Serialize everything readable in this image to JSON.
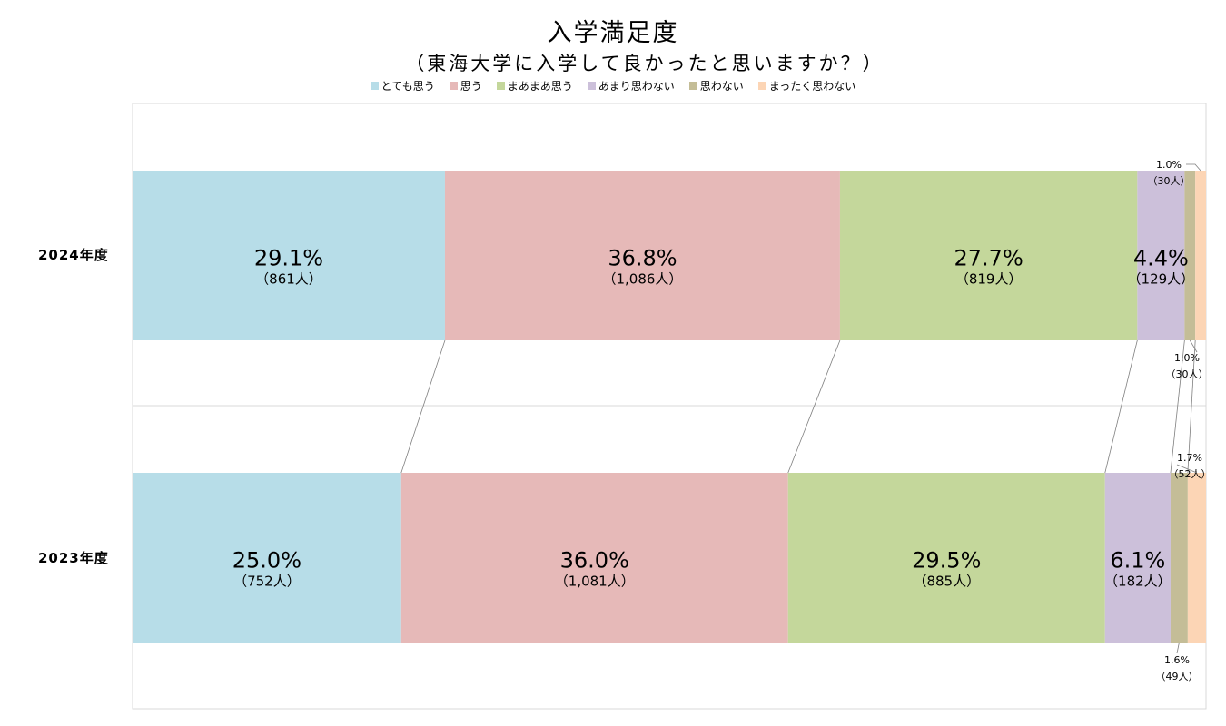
{
  "chart_data": {
    "type": "bar",
    "orientation": "horizontal",
    "stacked": "100%",
    "title": "入学満足度",
    "subtitle": "（東海大学に入学して良かったと思いますか？）",
    "categories": [
      "2024年度",
      "2023年度"
    ],
    "legend_position": "top",
    "series": [
      {
        "name": "とても思う",
        "color": "#b7dde8",
        "values": [
          29.1,
          25.0
        ],
        "labels": [
          "29.1%",
          "25.0%"
        ],
        "counts": [
          "（861人）",
          "（752人）"
        ]
      },
      {
        "name": "思う",
        "color": "#e6b9b8",
        "values": [
          36.8,
          36.0
        ],
        "labels": [
          "36.8%",
          "36.0%"
        ],
        "counts": [
          "（1,086人）",
          "（1,081人）"
        ]
      },
      {
        "name": "まあまあ思う",
        "color": "#c4d79b",
        "values": [
          27.7,
          29.5
        ],
        "labels": [
          "27.7%",
          "29.5%"
        ],
        "counts": [
          "（819人）",
          "（885人）"
        ]
      },
      {
        "name": "あまり思わない",
        "color": "#ccc0da",
        "values": [
          4.4,
          6.1
        ],
        "labels": [
          "4.4%",
          "6.1%"
        ],
        "counts": [
          "（129人）",
          "（182人）"
        ]
      },
      {
        "name": "思わない",
        "color": "#c4bd97",
        "values": [
          1.0,
          1.6
        ],
        "labels": [
          "1.0%",
          "1.6%"
        ],
        "counts": [
          "（30人）",
          "（49人）"
        ]
      },
      {
        "name": "まったく思わない",
        "color": "#fcd5b5",
        "values": [
          1.0,
          1.7
        ],
        "labels": [
          "1.0%",
          "1.7%"
        ],
        "counts": [
          "（30人）",
          "（52人）"
        ]
      }
    ]
  }
}
